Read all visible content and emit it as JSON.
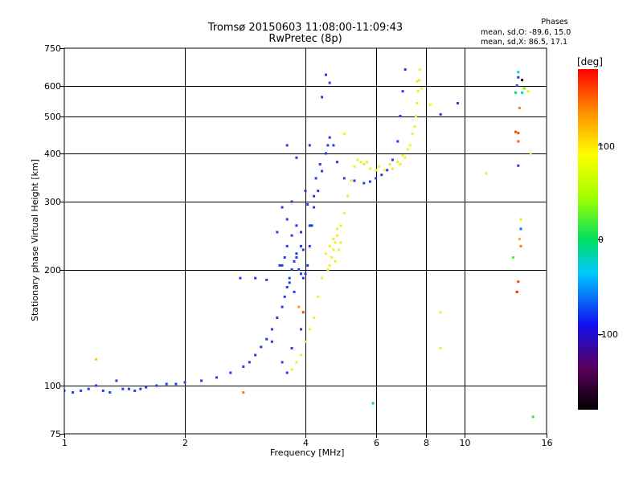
{
  "header": {
    "title_line1": "Tromsø 20150603 11:08:00-11:09:43",
    "title_line2": "RwPretec (8p)",
    "phases_title": "Phases",
    "phases_o": "mean, sd,O: -89.6, 15.0",
    "phases_x": "mean, sd,X: 86.5, 17.1"
  },
  "colorbar": {
    "unit": "[deg]",
    "ticks": [
      "100",
      "0",
      "-100"
    ],
    "tick_values": [
      100,
      0,
      -100
    ],
    "range": [
      -180,
      180
    ],
    "scale": "rainbow"
  },
  "chart_data": {
    "type": "scatter",
    "title": "Tromsø 20150603 11:08:00-11:09:43",
    "subtitle": "RwPretec (8p)",
    "xlabel": "Frequency [MHz]",
    "ylabel": "Stationary phase Virtual Height [km]",
    "xscale": "log",
    "yscale": "log",
    "xlim": [
      1,
      16
    ],
    "ylim": [
      75,
      750
    ],
    "grid": true,
    "x_ticks": [
      1,
      2,
      4,
      6,
      8,
      10,
      16
    ],
    "x_tick_labels": [
      "1",
      "2",
      "4",
      "6",
      "8",
      "10",
      "16"
    ],
    "y_ticks": [
      75,
      100,
      200,
      300,
      400,
      500,
      600,
      750
    ],
    "y_tick_labels": [
      "75",
      "100",
      "200",
      "300",
      "400",
      "500",
      "600",
      "750"
    ],
    "colorbar_label": "[deg]",
    "colorbar_ticks": [
      100,
      0,
      -100
    ],
    "colors": {
      "o_mode": "#1e3cf0",
      "x_mode": "#f0f020",
      "grid": "#000000",
      "background": "#ffffff"
    },
    "series": [
      {
        "mode": "O",
        "mean_phase": -89.6,
        "points": [
          [
            1.0,
            97
          ],
          [
            1.05,
            96
          ],
          [
            1.1,
            97
          ],
          [
            1.15,
            98
          ],
          [
            1.2,
            100
          ],
          [
            1.25,
            97
          ],
          [
            1.3,
            96
          ],
          [
            1.35,
            103
          ],
          [
            1.4,
            98
          ],
          [
            1.45,
            98
          ],
          [
            1.5,
            97
          ],
          [
            1.55,
            98
          ],
          [
            1.6,
            99
          ],
          [
            1.7,
            100
          ],
          [
            1.8,
            101
          ],
          [
            1.9,
            101
          ],
          [
            2.0,
            102
          ],
          [
            2.2,
            103
          ],
          [
            2.4,
            105
          ],
          [
            2.6,
            108
          ],
          [
            2.8,
            112
          ],
          [
            2.9,
            115
          ],
          [
            3.0,
            120
          ],
          [
            3.1,
            126
          ],
          [
            3.2,
            132
          ],
          [
            3.3,
            140
          ],
          [
            3.4,
            150
          ],
          [
            3.5,
            160
          ],
          [
            3.55,
            170
          ],
          [
            3.6,
            180
          ],
          [
            3.65,
            190
          ],
          [
            3.7,
            200
          ],
          [
            3.75,
            210
          ],
          [
            3.8,
            215
          ],
          [
            3.85,
            200
          ],
          [
            3.9,
            195
          ],
          [
            3.95,
            190
          ],
          [
            4.0,
            195
          ],
          [
            4.05,
            205
          ],
          [
            4.1,
            230
          ],
          [
            4.15,
            260
          ],
          [
            4.2,
            290
          ],
          [
            4.3,
            320
          ],
          [
            4.4,
            360
          ],
          [
            4.5,
            400
          ],
          [
            4.55,
            420
          ],
          [
            4.6,
            440
          ],
          [
            4.7,
            420
          ],
          [
            4.8,
            380
          ],
          [
            5.0,
            345
          ],
          [
            5.3,
            340
          ],
          [
            5.6,
            335
          ],
          [
            5.8,
            338
          ],
          [
            6.0,
            345
          ],
          [
            6.2,
            352
          ],
          [
            6.4,
            362
          ],
          [
            6.6,
            385
          ],
          [
            6.8,
            430
          ],
          [
            6.9,
            500
          ],
          [
            7.0,
            580
          ],
          [
            7.1,
            660
          ],
          [
            3.0,
            190
          ],
          [
            3.2,
            188
          ],
          [
            3.4,
            250
          ],
          [
            3.5,
            290
          ],
          [
            3.6,
            270
          ],
          [
            3.7,
            300
          ],
          [
            3.8,
            260
          ],
          [
            3.9,
            230
          ],
          [
            4.4,
            560
          ],
          [
            4.5,
            640
          ],
          [
            4.6,
            610
          ],
          [
            3.6,
            420
          ],
          [
            3.8,
            390
          ],
          [
            4.1,
            420
          ],
          [
            4.0,
            320
          ],
          [
            2.75,
            190
          ],
          [
            3.3,
            130
          ],
          [
            3.5,
            115
          ],
          [
            3.6,
            108
          ],
          [
            3.7,
            125
          ],
          [
            3.9,
            140
          ],
          [
            9.6,
            540
          ],
          [
            8.7,
            505
          ],
          [
            13.6,
            630
          ],
          [
            13.5,
            600
          ],
          [
            13.6,
            372
          ],
          [
            3.75,
            175
          ],
          [
            3.65,
            185
          ],
          [
            3.55,
            215
          ],
          [
            3.45,
            205
          ],
          [
            3.9,
            250
          ],
          [
            4.05,
            295
          ],
          [
            4.25,
            345
          ],
          [
            4.35,
            375
          ],
          [
            3.5,
            205
          ],
          [
            3.6,
            230
          ],
          [
            3.7,
            245
          ],
          [
            3.8,
            220
          ],
          [
            3.95,
            225
          ],
          [
            4.1,
            260
          ],
          [
            4.2,
            310
          ]
        ]
      },
      {
        "mode": "X",
        "mean_phase": 86.5,
        "points": [
          [
            3.7,
            110
          ],
          [
            3.8,
            115
          ],
          [
            3.9,
            120
          ],
          [
            4.0,
            130
          ],
          [
            4.1,
            140
          ],
          [
            4.2,
            150
          ],
          [
            4.3,
            170
          ],
          [
            4.4,
            190
          ],
          [
            4.6,
            205
          ],
          [
            4.65,
            215
          ],
          [
            4.7,
            225
          ],
          [
            4.75,
            235
          ],
          [
            4.8,
            245
          ],
          [
            4.9,
            260
          ],
          [
            5.0,
            280
          ],
          [
            5.1,
            310
          ],
          [
            5.2,
            340
          ],
          [
            5.3,
            370
          ],
          [
            5.4,
            385
          ],
          [
            5.6,
            375
          ],
          [
            5.8,
            365
          ],
          [
            6.0,
            362
          ],
          [
            6.3,
            362
          ],
          [
            6.6,
            365
          ],
          [
            6.9,
            375
          ],
          [
            7.1,
            390
          ],
          [
            7.3,
            420
          ],
          [
            7.5,
            470
          ],
          [
            7.6,
            540
          ],
          [
            7.7,
            620
          ],
          [
            7.72,
            660
          ],
          [
            4.5,
            220
          ],
          [
            4.6,
            230
          ],
          [
            4.7,
            240
          ],
          [
            4.8,
            255
          ],
          [
            4.55,
            200
          ],
          [
            4.75,
            210
          ],
          [
            4.85,
            225
          ],
          [
            4.9,
            235
          ],
          [
            5.5,
            380
          ],
          [
            5.7,
            380
          ],
          [
            6.1,
            370
          ],
          [
            6.5,
            375
          ],
          [
            6.8,
            380
          ],
          [
            7.0,
            395
          ],
          [
            7.2,
            410
          ],
          [
            7.4,
            450
          ],
          [
            7.55,
            500
          ],
          [
            7.65,
            580
          ],
          [
            11.3,
            355
          ],
          [
            8.7,
            155
          ],
          [
            8.7,
            125
          ],
          [
            14.6,
            400
          ],
          [
            14.4,
            580
          ],
          [
            14.0,
            590
          ],
          [
            7.6,
            615
          ],
          [
            7.8,
            590
          ]
        ]
      },
      {
        "mode": "other",
        "points": [
          [
            13.6,
            650,
            -30
          ],
          [
            13.9,
            575,
            -20
          ],
          [
            13.8,
            255,
            -60
          ],
          [
            13.8,
            270,
            60
          ],
          [
            13.7,
            240,
            120
          ],
          [
            13.8,
            230,
            140
          ],
          [
            14.8,
            83,
            10
          ],
          [
            13.2,
            215,
            20
          ],
          [
            13.6,
            186,
            160
          ],
          [
            13.5,
            175,
            170
          ],
          [
            13.6,
            452,
            160
          ],
          [
            13.6,
            430,
            150
          ],
          [
            14.1,
            590,
            30
          ],
          [
            13.7,
            525,
            140
          ],
          [
            13.4,
            455,
            160
          ],
          [
            1.2,
            117,
            110
          ],
          [
            2.8,
            96,
            140
          ],
          [
            5.9,
            90,
            -20
          ],
          [
            3.95,
            155,
            160
          ],
          [
            3.85,
            160,
            130
          ],
          [
            8.2,
            535,
            80
          ],
          [
            5.0,
            450,
            80
          ],
          [
            13.9,
            620,
            -180
          ],
          [
            13.4,
            575,
            0
          ]
        ]
      }
    ]
  }
}
